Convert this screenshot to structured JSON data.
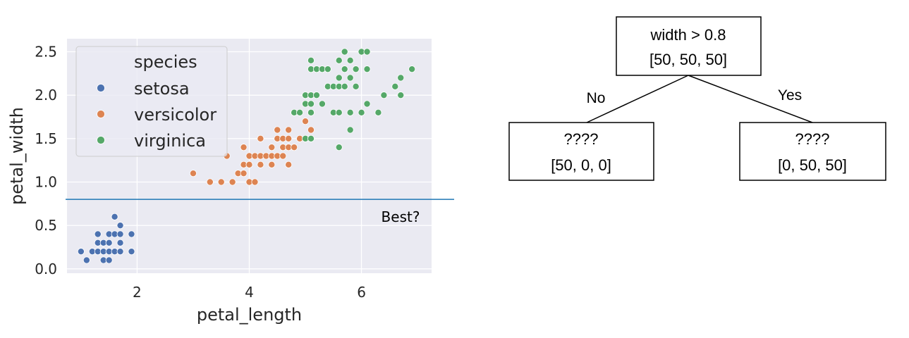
{
  "chart_data": {
    "type": "scatter",
    "xlabel": "petal_length",
    "ylabel": "petal_width",
    "xlim": [
      0.75,
      7.25
    ],
    "ylim": [
      -0.05,
      2.65
    ],
    "xticks": [
      "2",
      "4",
      "6"
    ],
    "yticks": [
      "0.0",
      "0.5",
      "1.0",
      "1.5",
      "2.0",
      "2.5"
    ],
    "grid": true,
    "legend": {
      "title": "species",
      "position": "top-left"
    },
    "threshold": {
      "y": 0.8,
      "label": "Best?"
    },
    "series": [
      {
        "name": "setosa",
        "color": "#4c72b0",
        "points": [
          [
            1.0,
            0.2
          ],
          [
            1.1,
            0.1
          ],
          [
            1.2,
            0.2
          ],
          [
            1.3,
            0.2
          ],
          [
            1.3,
            0.3
          ],
          [
            1.3,
            0.4
          ],
          [
            1.4,
            0.1
          ],
          [
            1.4,
            0.2
          ],
          [
            1.4,
            0.3
          ],
          [
            1.5,
            0.1
          ],
          [
            1.5,
            0.2
          ],
          [
            1.5,
            0.3
          ],
          [
            1.5,
            0.4
          ],
          [
            1.6,
            0.2
          ],
          [
            1.6,
            0.4
          ],
          [
            1.6,
            0.6
          ],
          [
            1.7,
            0.2
          ],
          [
            1.7,
            0.3
          ],
          [
            1.7,
            0.4
          ],
          [
            1.7,
            0.5
          ],
          [
            1.9,
            0.2
          ],
          [
            1.9,
            0.4
          ]
        ]
      },
      {
        "name": "versicolor",
        "color": "#dd8452",
        "points": [
          [
            3.0,
            1.1
          ],
          [
            3.3,
            1.0
          ],
          [
            3.5,
            1.0
          ],
          [
            3.6,
            1.3
          ],
          [
            3.7,
            1.0
          ],
          [
            3.8,
            1.1
          ],
          [
            3.9,
            1.1
          ],
          [
            3.9,
            1.2
          ],
          [
            3.9,
            1.4
          ],
          [
            4.0,
            1.0
          ],
          [
            4.0,
            1.2
          ],
          [
            4.0,
            1.3
          ],
          [
            4.1,
            1.0
          ],
          [
            4.1,
            1.3
          ],
          [
            4.2,
            1.2
          ],
          [
            4.2,
            1.3
          ],
          [
            4.2,
            1.5
          ],
          [
            4.3,
            1.3
          ],
          [
            4.4,
            1.2
          ],
          [
            4.4,
            1.3
          ],
          [
            4.4,
            1.4
          ],
          [
            4.5,
            1.3
          ],
          [
            4.5,
            1.5
          ],
          [
            4.5,
            1.6
          ],
          [
            4.6,
            1.3
          ],
          [
            4.6,
            1.4
          ],
          [
            4.6,
            1.5
          ],
          [
            4.7,
            1.2
          ],
          [
            4.7,
            1.4
          ],
          [
            4.7,
            1.5
          ],
          [
            4.7,
            1.6
          ],
          [
            4.8,
            1.4
          ],
          [
            4.8,
            1.8
          ],
          [
            4.9,
            1.5
          ],
          [
            5.0,
            1.7
          ],
          [
            5.1,
            1.6
          ]
        ]
      },
      {
        "name": "virginica",
        "color": "#55a868",
        "points": [
          [
            4.8,
            1.8
          ],
          [
            4.9,
            1.8
          ],
          [
            5.0,
            1.5
          ],
          [
            5.0,
            1.9
          ],
          [
            5.0,
            2.0
          ],
          [
            5.1,
            1.5
          ],
          [
            5.1,
            1.8
          ],
          [
            5.1,
            1.9
          ],
          [
            5.1,
            2.0
          ],
          [
            5.1,
            2.3
          ],
          [
            5.1,
            2.4
          ],
          [
            5.2,
            2.0
          ],
          [
            5.2,
            2.3
          ],
          [
            5.3,
            1.9
          ],
          [
            5.3,
            2.3
          ],
          [
            5.4,
            2.1
          ],
          [
            5.4,
            2.3
          ],
          [
            5.5,
            1.8
          ],
          [
            5.5,
            2.1
          ],
          [
            5.6,
            1.4
          ],
          [
            5.6,
            1.8
          ],
          [
            5.6,
            2.1
          ],
          [
            5.6,
            2.2
          ],
          [
            5.6,
            2.4
          ],
          [
            5.7,
            2.1
          ],
          [
            5.7,
            2.3
          ],
          [
            5.7,
            2.5
          ],
          [
            5.8,
            1.6
          ],
          [
            5.8,
            1.8
          ],
          [
            5.8,
            2.2
          ],
          [
            5.8,
            2.4
          ],
          [
            5.9,
            2.1
          ],
          [
            5.9,
            2.3
          ],
          [
            6.0,
            1.8
          ],
          [
            6.0,
            2.5
          ],
          [
            6.1,
            1.9
          ],
          [
            6.1,
            2.3
          ],
          [
            6.1,
            2.5
          ],
          [
            6.3,
            1.8
          ],
          [
            6.4,
            2.0
          ],
          [
            6.6,
            2.1
          ],
          [
            6.7,
            2.0
          ],
          [
            6.7,
            2.2
          ],
          [
            6.9,
            2.3
          ]
        ]
      }
    ]
  },
  "tree": {
    "root": {
      "line1": "width > 0.8",
      "line2": "[50, 50, 50]"
    },
    "left": {
      "edge": "No",
      "line1": "????",
      "line2": "[50, 0, 0]"
    },
    "right": {
      "edge": "Yes",
      "line1": "????",
      "line2": "[0, 50, 50]"
    }
  }
}
